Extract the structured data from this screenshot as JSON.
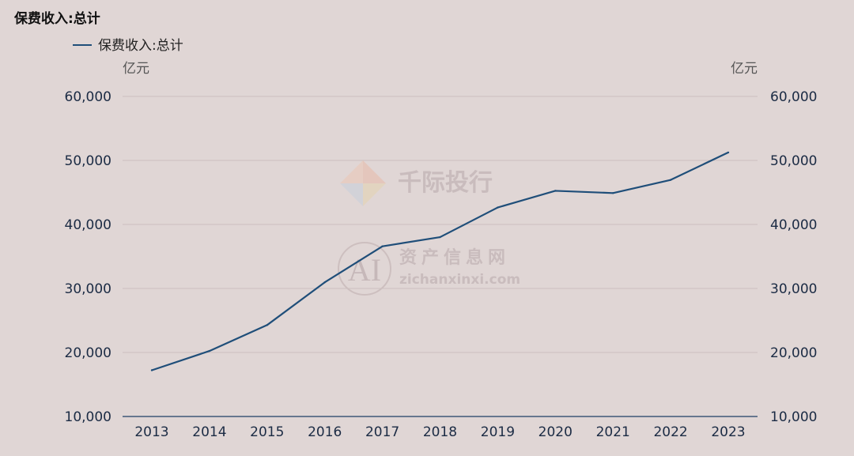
{
  "chart_data": {
    "type": "line",
    "title": "保费收入:总计",
    "legend": {
      "position": "top-left"
    },
    "y_unit_left": "亿元",
    "y_unit_right": "亿元",
    "ylim": [
      10000,
      60000
    ],
    "y_ticks": [
      "60,000",
      "50,000",
      "40,000",
      "30,000",
      "20,000",
      "10,000"
    ],
    "y_tick_values": [
      60000,
      50000,
      40000,
      30000,
      20000,
      10000
    ],
    "grid": true,
    "categories": [
      "2013",
      "2014",
      "2015",
      "2016",
      "2017",
      "2018",
      "2019",
      "2020",
      "2021",
      "2022",
      "2023"
    ],
    "series": [
      {
        "name": "保费收入:总计",
        "color": "#1f4e79",
        "values": [
          17222,
          20235,
          24283,
          30959,
          36581,
          38017,
          42645,
          45257,
          44900,
          46957,
          51247
        ]
      }
    ]
  },
  "watermark": {
    "brand": "千际投行",
    "site_name": "资产信息网",
    "site_url": "zichanxinxi.com",
    "logo_text": "AI"
  }
}
